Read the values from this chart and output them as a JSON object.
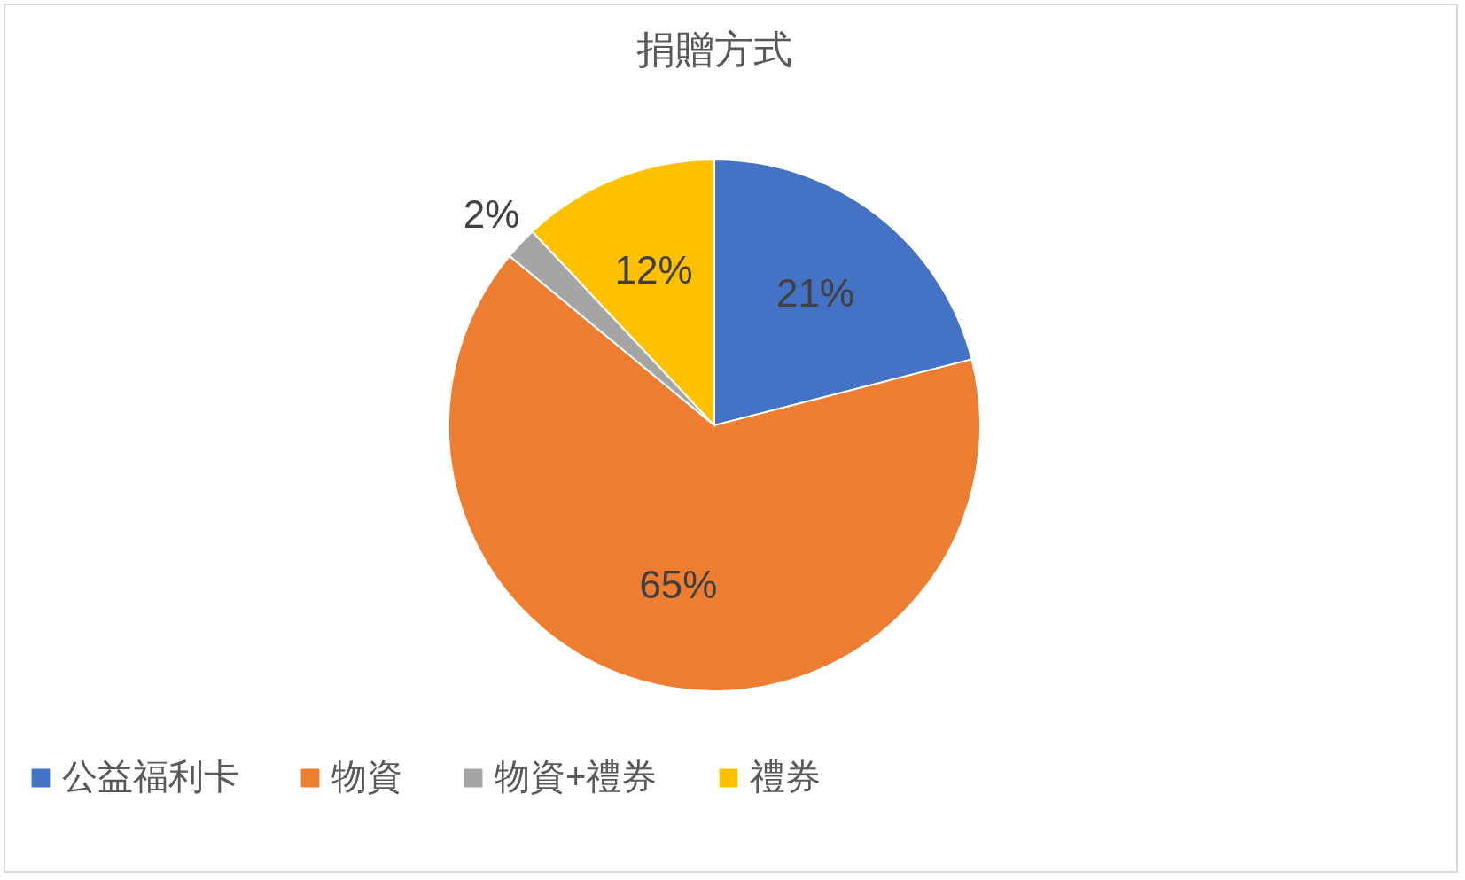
{
  "chart_data": {
    "type": "pie",
    "title": "捐贈方式",
    "categories": [
      "公益福利卡",
      "物資",
      "物資+禮券",
      "禮券"
    ],
    "values": [
      21,
      65,
      2,
      12
    ],
    "colors": [
      "#4472c4",
      "#ed7d31",
      "#a5a5a5",
      "#ffc000"
    ],
    "value_labels": [
      "21%",
      "65%",
      "2%",
      "12%"
    ],
    "legend": "bottom"
  }
}
